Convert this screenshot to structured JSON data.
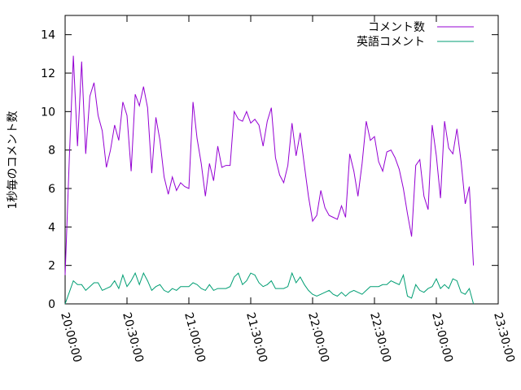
{
  "chart_data": {
    "type": "line",
    "title": "",
    "xlabel": "",
    "ylabel": "1秒毎のコメント数",
    "xlim": [
      "20:00:00",
      "23:30:00"
    ],
    "ylim": [
      0,
      15
    ],
    "x_ticks": [
      "20:00:00",
      "20:30:00",
      "21:00:00",
      "21:30:00",
      "22:00:00",
      "22:30:00",
      "23:00:00",
      "23:30:00"
    ],
    "y_ticks": [
      0,
      2,
      4,
      6,
      8,
      10,
      12,
      14
    ],
    "grid": false,
    "legend": "top-right",
    "x_minutes": [
      0,
      1,
      2,
      3,
      4,
      5,
      6,
      7,
      8,
      9,
      10,
      11,
      12,
      13,
      14,
      15,
      16,
      17,
      18,
      19,
      20,
      21,
      22,
      23,
      24,
      25,
      26,
      27,
      28,
      29,
      30,
      31,
      32,
      33,
      34,
      35,
      36,
      37,
      38,
      39,
      40,
      41,
      42,
      43,
      44,
      45,
      46,
      47,
      48,
      49,
      50,
      51,
      52,
      53,
      54,
      55,
      56,
      57,
      58,
      59,
      60,
      61,
      62,
      63,
      64,
      65,
      66,
      67,
      68,
      69,
      70,
      71,
      72,
      73,
      74,
      75,
      76,
      77,
      78,
      79,
      80,
      81,
      82,
      83,
      84,
      85,
      86,
      87,
      88,
      89,
      90,
      91,
      92,
      93,
      94,
      95,
      96,
      97,
      98,
      99,
      100,
      101,
      102,
      103,
      104,
      105,
      106,
      107,
      108,
      109,
      110,
      111,
      112,
      113,
      114,
      115,
      116,
      117,
      118,
      119,
      120,
      121,
      122,
      123,
      124,
      125,
      126,
      127,
      128,
      129,
      130,
      131,
      132,
      133,
      134,
      135,
      136,
      137,
      138,
      139,
      140,
      141,
      142,
      143,
      144,
      145,
      146,
      147,
      148,
      149,
      150,
      151,
      152,
      153,
      154,
      155,
      156,
      157,
      158,
      159,
      160,
      161,
      162,
      163,
      164,
      165,
      166,
      167,
      168,
      169,
      170,
      171,
      172,
      173,
      174,
      175,
      176,
      177,
      178,
      179,
      180,
      181,
      182,
      183,
      184,
      185,
      186,
      187,
      188,
      189,
      190,
      191,
      192,
      193,
      194,
      195,
      196,
      197,
      198,
      199,
      200,
      201,
      202,
      203,
      204,
      205,
      206,
      207,
      208,
      209,
      210
    ],
    "series": [
      {
        "name": "コメント数",
        "color": "#9400d3",
        "points": [
          [
            0,
            1.5
          ],
          [
            2,
            7.5
          ],
          [
            4,
            12.9
          ],
          [
            6,
            8.2
          ],
          [
            8,
            12.6
          ],
          [
            10,
            7.8
          ],
          [
            12,
            10.8
          ],
          [
            14,
            11.5
          ],
          [
            16,
            9.8
          ],
          [
            18,
            9.0
          ],
          [
            20,
            7.1
          ],
          [
            22,
            8.0
          ],
          [
            24,
            9.3
          ],
          [
            26,
            8.5
          ],
          [
            28,
            10.5
          ],
          [
            30,
            9.8
          ],
          [
            32,
            6.9
          ],
          [
            34,
            10.9
          ],
          [
            36,
            10.3
          ],
          [
            38,
            11.3
          ],
          [
            40,
            10.2
          ],
          [
            42,
            6.8
          ],
          [
            44,
            9.7
          ],
          [
            46,
            8.5
          ],
          [
            48,
            6.6
          ],
          [
            50,
            5.7
          ],
          [
            52,
            6.6
          ],
          [
            54,
            5.9
          ],
          [
            56,
            6.3
          ],
          [
            58,
            6.1
          ],
          [
            60,
            6.0
          ],
          [
            62,
            10.5
          ],
          [
            64,
            8.6
          ],
          [
            66,
            7.3
          ],
          [
            68,
            5.6
          ],
          [
            70,
            7.3
          ],
          [
            72,
            6.4
          ],
          [
            74,
            8.2
          ],
          [
            76,
            7.1
          ],
          [
            78,
            7.2
          ],
          [
            80,
            7.2
          ],
          [
            82,
            10.0
          ],
          [
            84,
            9.6
          ],
          [
            86,
            9.5
          ],
          [
            88,
            10.0
          ],
          [
            90,
            9.4
          ],
          [
            92,
            9.6
          ],
          [
            94,
            9.3
          ],
          [
            96,
            8.2
          ],
          [
            98,
            9.5
          ],
          [
            100,
            10.2
          ],
          [
            102,
            7.6
          ],
          [
            104,
            6.7
          ],
          [
            106,
            6.3
          ],
          [
            108,
            7.2
          ],
          [
            110,
            9.4
          ],
          [
            112,
            7.7
          ],
          [
            114,
            8.9
          ],
          [
            116,
            7.2
          ],
          [
            118,
            5.6
          ],
          [
            120,
            4.3
          ],
          [
            122,
            4.6
          ],
          [
            124,
            5.9
          ],
          [
            126,
            5.0
          ],
          [
            128,
            4.6
          ],
          [
            130,
            4.5
          ],
          [
            132,
            4.4
          ],
          [
            134,
            5.1
          ],
          [
            136,
            4.5
          ],
          [
            138,
            7.8
          ],
          [
            140,
            6.9
          ],
          [
            142,
            5.6
          ],
          [
            144,
            7.3
          ],
          [
            146,
            9.5
          ],
          [
            148,
            8.5
          ],
          [
            150,
            8.7
          ],
          [
            152,
            7.4
          ],
          [
            154,
            6.9
          ],
          [
            156,
            7.9
          ],
          [
            158,
            8.0
          ],
          [
            160,
            7.6
          ],
          [
            162,
            7.0
          ],
          [
            164,
            6.0
          ],
          [
            166,
            4.7
          ],
          [
            168,
            3.5
          ],
          [
            170,
            7.2
          ],
          [
            172,
            7.5
          ],
          [
            174,
            5.6
          ],
          [
            176,
            4.9
          ],
          [
            178,
            9.3
          ],
          [
            180,
            7.7
          ],
          [
            182,
            5.5
          ],
          [
            184,
            9.5
          ],
          [
            186,
            8.1
          ],
          [
            188,
            7.8
          ],
          [
            190,
            9.1
          ],
          [
            192,
            7.4
          ],
          [
            194,
            5.2
          ],
          [
            196,
            6.1
          ],
          [
            198,
            2.0
          ]
        ]
      },
      {
        "name": "英語コメント",
        "color": "#009e73",
        "points": [
          [
            0,
            0.0
          ],
          [
            2,
            0.6
          ],
          [
            4,
            1.2
          ],
          [
            6,
            1.0
          ],
          [
            8,
            1.0
          ],
          [
            10,
            0.7
          ],
          [
            12,
            0.9
          ],
          [
            14,
            1.1
          ],
          [
            16,
            1.1
          ],
          [
            18,
            0.7
          ],
          [
            20,
            0.8
          ],
          [
            22,
            0.9
          ],
          [
            24,
            1.2
          ],
          [
            26,
            0.8
          ],
          [
            28,
            1.5
          ],
          [
            30,
            0.9
          ],
          [
            32,
            1.2
          ],
          [
            34,
            1.6
          ],
          [
            36,
            1.0
          ],
          [
            38,
            1.6
          ],
          [
            40,
            1.2
          ],
          [
            42,
            0.7
          ],
          [
            44,
            0.9
          ],
          [
            46,
            1.0
          ],
          [
            48,
            0.7
          ],
          [
            50,
            0.6
          ],
          [
            52,
            0.8
          ],
          [
            54,
            0.7
          ],
          [
            56,
            0.9
          ],
          [
            58,
            0.9
          ],
          [
            60,
            0.9
          ],
          [
            62,
            1.1
          ],
          [
            64,
            1.0
          ],
          [
            66,
            0.8
          ],
          [
            68,
            0.7
          ],
          [
            70,
            1.0
          ],
          [
            72,
            0.7
          ],
          [
            74,
            0.8
          ],
          [
            76,
            0.8
          ],
          [
            78,
            0.8
          ],
          [
            80,
            0.9
          ],
          [
            82,
            1.4
          ],
          [
            84,
            1.6
          ],
          [
            86,
            1.0
          ],
          [
            88,
            1.2
          ],
          [
            90,
            1.6
          ],
          [
            92,
            1.5
          ],
          [
            94,
            1.1
          ],
          [
            96,
            0.9
          ],
          [
            98,
            1.0
          ],
          [
            100,
            1.2
          ],
          [
            102,
            0.8
          ],
          [
            104,
            0.8
          ],
          [
            106,
            0.8
          ],
          [
            108,
            0.9
          ],
          [
            110,
            1.6
          ],
          [
            112,
            1.1
          ],
          [
            114,
            1.4
          ],
          [
            116,
            1.0
          ],
          [
            118,
            0.7
          ],
          [
            120,
            0.5
          ],
          [
            122,
            0.4
          ],
          [
            124,
            0.5
          ],
          [
            126,
            0.6
          ],
          [
            128,
            0.7
          ],
          [
            130,
            0.5
          ],
          [
            132,
            0.4
          ],
          [
            134,
            0.6
          ],
          [
            136,
            0.4
          ],
          [
            138,
            0.6
          ],
          [
            140,
            0.7
          ],
          [
            142,
            0.6
          ],
          [
            144,
            0.5
          ],
          [
            146,
            0.7
          ],
          [
            148,
            0.9
          ],
          [
            150,
            0.9
          ],
          [
            152,
            0.9
          ],
          [
            154,
            1.0
          ],
          [
            156,
            1.0
          ],
          [
            158,
            1.2
          ],
          [
            160,
            1.1
          ],
          [
            162,
            1.0
          ],
          [
            164,
            1.5
          ],
          [
            166,
            0.4
          ],
          [
            168,
            0.3
          ],
          [
            170,
            1.0
          ],
          [
            172,
            0.7
          ],
          [
            174,
            0.6
          ],
          [
            176,
            0.8
          ],
          [
            178,
            0.9
          ],
          [
            180,
            1.3
          ],
          [
            182,
            0.8
          ],
          [
            184,
            1.0
          ],
          [
            186,
            0.8
          ],
          [
            188,
            1.3
          ],
          [
            190,
            1.2
          ],
          [
            192,
            0.6
          ],
          [
            194,
            0.5
          ],
          [
            196,
            0.8
          ],
          [
            198,
            0.0
          ]
        ]
      }
    ]
  }
}
